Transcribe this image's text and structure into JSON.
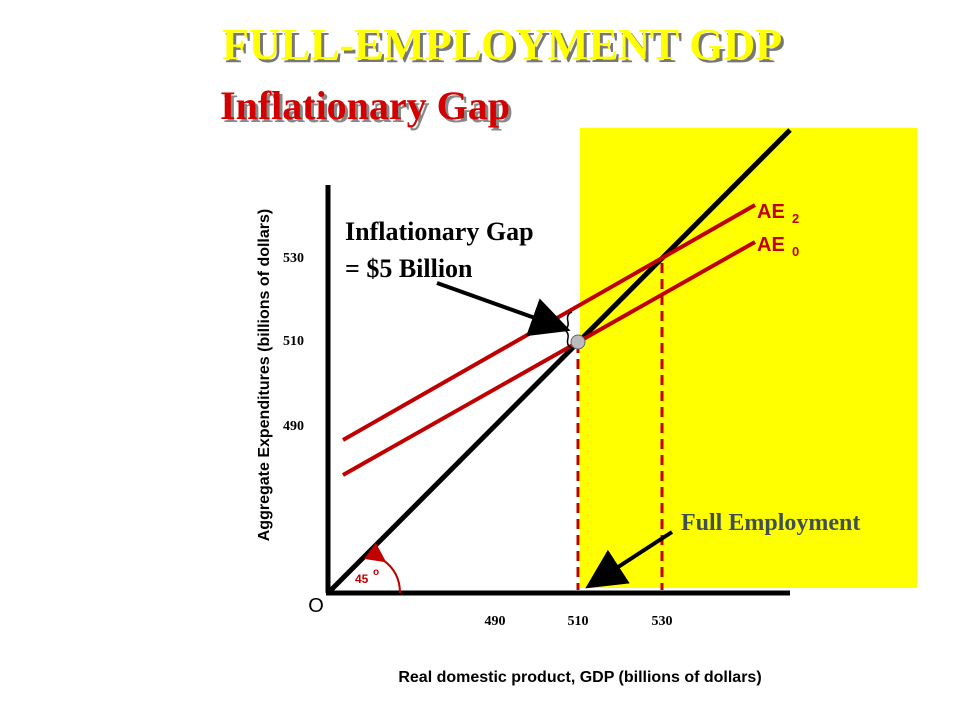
{
  "header": {
    "title": "FULL-EMPLOYMENT GDP",
    "subtitle": "Inflationary Gap"
  },
  "axes": {
    "y_label": "Aggregate Expenditures (billions of dollars)",
    "x_label": "Real domestic product, GDP (billions of dollars)",
    "origin": "O",
    "y_ticks": [
      "530",
      "510",
      "490"
    ],
    "x_ticks": [
      "490",
      "510",
      "530"
    ],
    "angle": "45",
    "angle_unit": "o"
  },
  "curves": [
    {
      "label": "AE",
      "sub": "2"
    },
    {
      "label": "AE",
      "sub": "0"
    }
  ],
  "annotations": {
    "gap": [
      "Inflationary Gap",
      "= $5 Billion"
    ],
    "full_employment": "Full Employment"
  }
}
